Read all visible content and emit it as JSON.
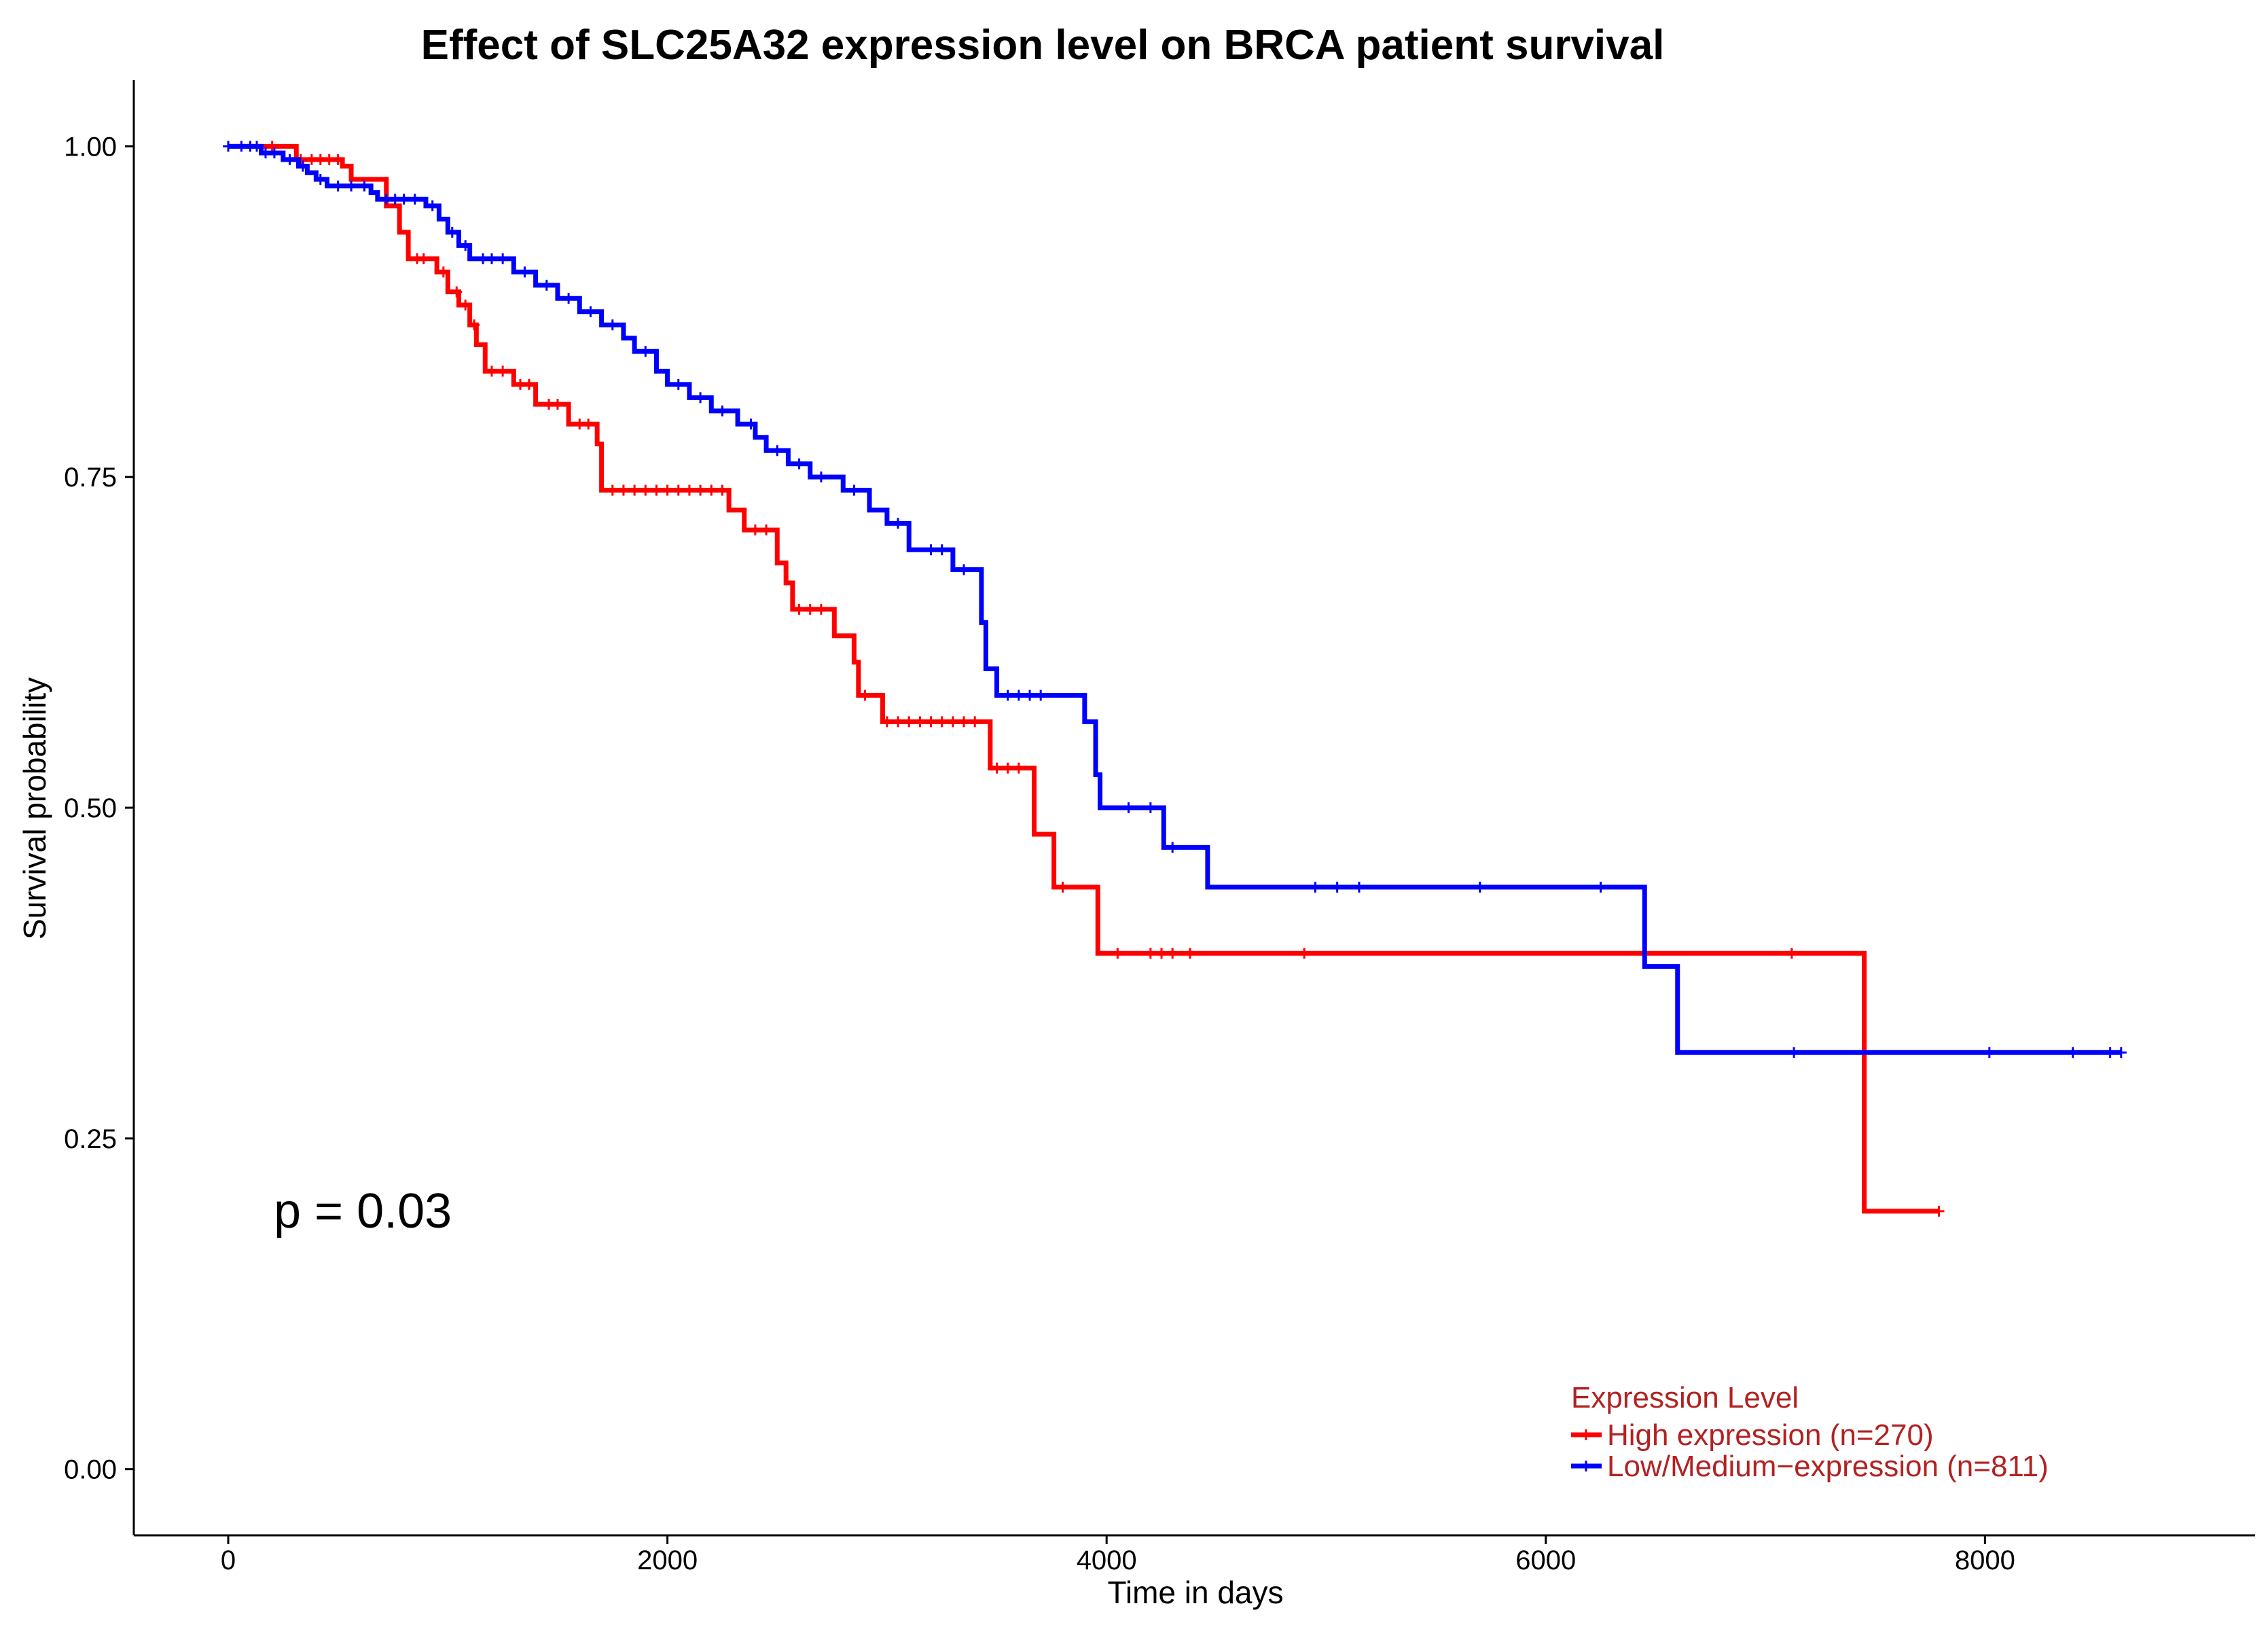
{
  "chart_data": {
    "type": "line",
    "subtype": "kaplan-meier",
    "title": "Effect of SLC25A32 expression level on BRCA patient survival",
    "xlabel": "Time in days",
    "ylabel": "Survival probability",
    "xlim": [
      -430,
      9230
    ],
    "ylim": [
      -0.05,
      1.05
    ],
    "xticks": [
      0,
      2000,
      4000,
      6000,
      8000
    ],
    "xtick_labels": [
      "0",
      "2000",
      "4000",
      "6000",
      "8000"
    ],
    "yticks": [
      0,
      0.25,
      0.5,
      0.75,
      1.0
    ],
    "ytick_labels": [
      "0.00",
      "0.25",
      "0.50",
      "0.75",
      "1.00"
    ],
    "grid": false,
    "annotation": {
      "text": "p = 0.03",
      "x": 170,
      "y": 0.195
    },
    "legend": {
      "title": "Expression Level",
      "position": "bottom-right",
      "title_color": "#b22222",
      "text_color": "#b22222"
    },
    "series": [
      {
        "name": "High expression (n=270)",
        "color": "#ff0000",
        "steps": [
          [
            0,
            1.0
          ],
          [
            310,
            0.99
          ],
          [
            520,
            0.985
          ],
          [
            560,
            0.975
          ],
          [
            720,
            0.955
          ],
          [
            780,
            0.935
          ],
          [
            820,
            0.915
          ],
          [
            950,
            0.905
          ],
          [
            1000,
            0.89
          ],
          [
            1050,
            0.88
          ],
          [
            1100,
            0.865
          ],
          [
            1130,
            0.85
          ],
          [
            1170,
            0.83
          ],
          [
            1300,
            0.82
          ],
          [
            1400,
            0.805
          ],
          [
            1550,
            0.79
          ],
          [
            1680,
            0.775
          ],
          [
            1700,
            0.74
          ],
          [
            2280,
            0.725
          ],
          [
            2350,
            0.71
          ],
          [
            2500,
            0.685
          ],
          [
            2540,
            0.67
          ],
          [
            2570,
            0.65
          ],
          [
            2760,
            0.63
          ],
          [
            2850,
            0.61
          ],
          [
            2870,
            0.585
          ],
          [
            2980,
            0.565
          ],
          [
            3470,
            0.53
          ],
          [
            3670,
            0.48
          ],
          [
            3760,
            0.44
          ],
          [
            3960,
            0.39
          ],
          [
            7450,
            0.195
          ],
          [
            7790,
            0.195
          ]
        ],
        "censor_x": [
          200,
          330,
          380,
          420,
          460,
          500,
          860,
          890,
          980,
          1040,
          1080,
          1120,
          1200,
          1250,
          1330,
          1370,
          1460,
          1500,
          1600,
          1640,
          1750,
          1800,
          1850,
          1900,
          1950,
          2000,
          2050,
          2100,
          2150,
          2200,
          2250,
          2400,
          2450,
          2600,
          2650,
          2700,
          2900,
          3000,
          3050,
          3100,
          3150,
          3200,
          3250,
          3300,
          3350,
          3400,
          3500,
          3550,
          3600,
          3800,
          4050,
          4200,
          4250,
          4300,
          4380,
          4900,
          7120,
          7790
        ]
      },
      {
        "name": "Low/Medium−expression (n=811)",
        "color": "#0000ff",
        "steps": [
          [
            0,
            1.0
          ],
          [
            150,
            0.995
          ],
          [
            250,
            0.99
          ],
          [
            320,
            0.985
          ],
          [
            360,
            0.98
          ],
          [
            400,
            0.975
          ],
          [
            450,
            0.97
          ],
          [
            650,
            0.965
          ],
          [
            680,
            0.96
          ],
          [
            900,
            0.955
          ],
          [
            960,
            0.945
          ],
          [
            1000,
            0.935
          ],
          [
            1050,
            0.925
          ],
          [
            1100,
            0.915
          ],
          [
            1300,
            0.905
          ],
          [
            1400,
            0.895
          ],
          [
            1500,
            0.885
          ],
          [
            1600,
            0.875
          ],
          [
            1700,
            0.865
          ],
          [
            1800,
            0.855
          ],
          [
            1850,
            0.845
          ],
          [
            1950,
            0.83
          ],
          [
            2000,
            0.82
          ],
          [
            2100,
            0.81
          ],
          [
            2200,
            0.8
          ],
          [
            2320,
            0.79
          ],
          [
            2400,
            0.78
          ],
          [
            2450,
            0.77
          ],
          [
            2550,
            0.76
          ],
          [
            2650,
            0.75
          ],
          [
            2800,
            0.74
          ],
          [
            2920,
            0.725
          ],
          [
            3000,
            0.715
          ],
          [
            3100,
            0.695
          ],
          [
            3300,
            0.68
          ],
          [
            3430,
            0.64
          ],
          [
            3450,
            0.605
          ],
          [
            3500,
            0.585
          ],
          [
            3900,
            0.565
          ],
          [
            3950,
            0.525
          ],
          [
            3970,
            0.5
          ],
          [
            4260,
            0.47
          ],
          [
            4460,
            0.44
          ],
          [
            6450,
            0.38
          ],
          [
            6600,
            0.315
          ],
          [
            8620,
            0.315
          ]
        ],
        "censor_x": [
          0,
          60,
          100,
          130,
          170,
          210,
          280,
          340,
          420,
          500,
          560,
          620,
          720,
          760,
          800,
          850,
          930,
          1020,
          1080,
          1160,
          1200,
          1250,
          1350,
          1450,
          1550,
          1650,
          1750,
          1900,
          2050,
          2150,
          2250,
          2380,
          2500,
          2600,
          2700,
          2850,
          3050,
          3200,
          3250,
          3350,
          3550,
          3600,
          3650,
          3700,
          4100,
          4200,
          4300,
          4950,
          5050,
          5150,
          5700,
          6250,
          7130,
          8020,
          8400,
          8570,
          8620
        ]
      }
    ]
  }
}
